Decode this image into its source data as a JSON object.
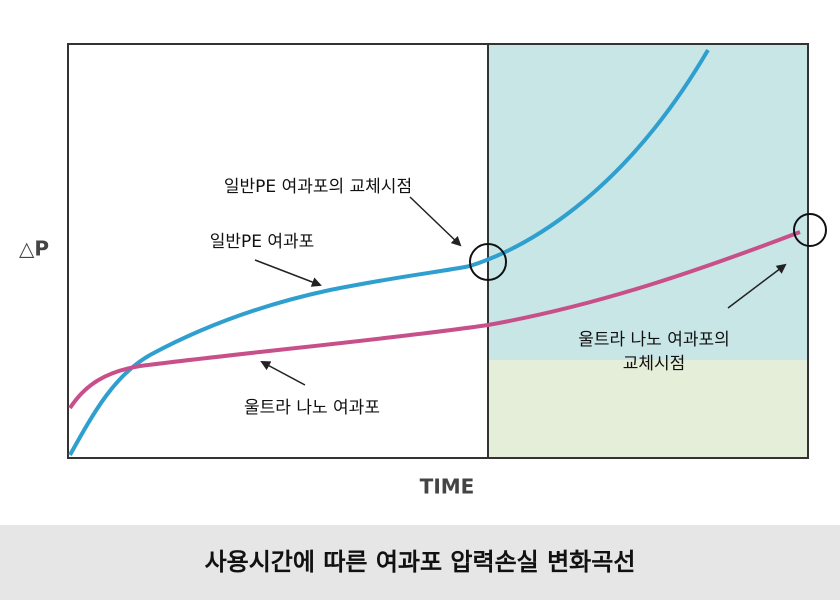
{
  "axis_labels": {
    "y": "△P",
    "x": "TIME"
  },
  "annotations": {
    "pe_replacement": "일반PE 여과포의 교체시점",
    "pe_filter": "일반PE 여과포",
    "nano_filter": "울트라 나노 여과포",
    "nano_replacement_line1": "울트라 나노 여과포의",
    "nano_replacement_line2": "교체시점"
  },
  "caption": "사용시간에 따른 여과포 압력손실 변화곡선"
}
